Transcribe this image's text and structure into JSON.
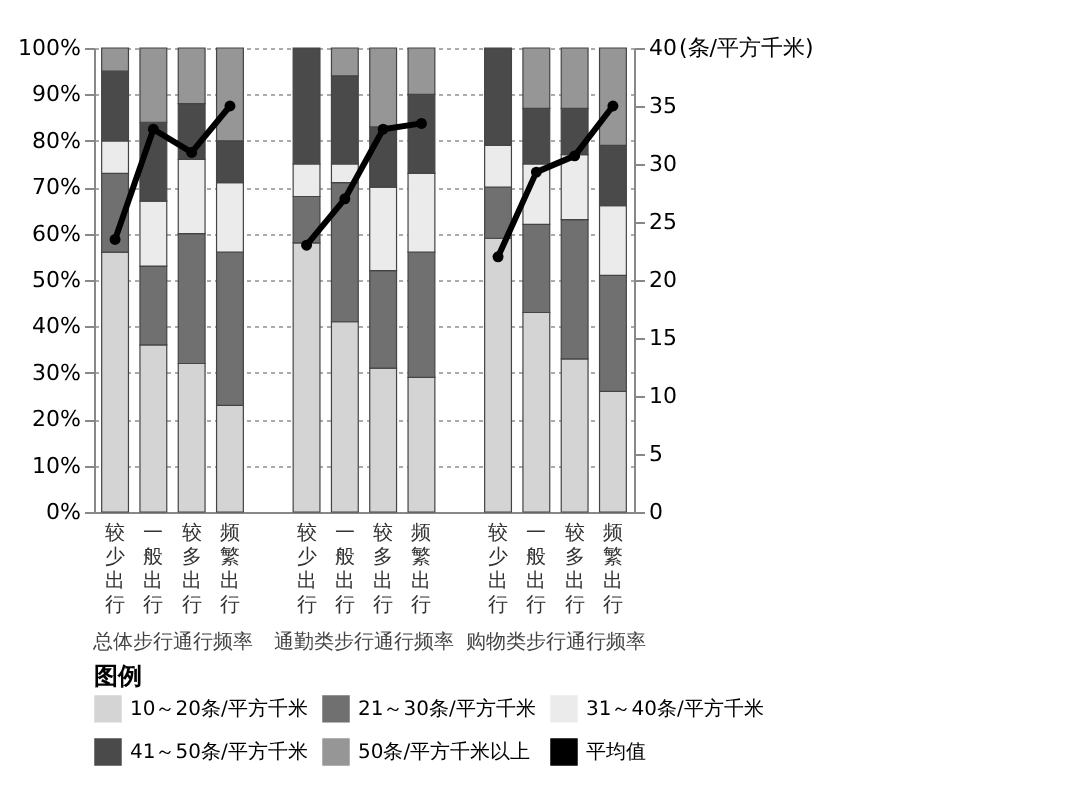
{
  "chart_data": {
    "type": "bar",
    "stacked": true,
    "categories": [
      "较少出行",
      "一般出行",
      "较多出行",
      "频繁出行",
      null,
      "较少出行",
      "一般出行",
      "较多出行",
      "频繁出行",
      null,
      "较少出行",
      "一般出行",
      "较多出行",
      "频繁出行"
    ],
    "series": [
      {
        "name": "10～20条/平方千米",
        "color": "#d4d4d4",
        "values": [
          56,
          36,
          32,
          23,
          null,
          58,
          41,
          31,
          29,
          null,
          59,
          43,
          33,
          26
        ]
      },
      {
        "name": "21～30条/平方千米",
        "color": "#707070",
        "values": [
          17,
          17,
          28,
          33,
          null,
          10,
          30,
          21,
          27,
          null,
          11,
          19,
          30,
          25
        ]
      },
      {
        "name": "31～40条/平方千米",
        "color": "#ebebeb",
        "values": [
          7,
          14,
          16,
          15,
          null,
          7,
          4,
          18,
          17,
          null,
          9,
          13,
          14,
          15
        ]
      },
      {
        "name": "41～50条/平方千米",
        "color": "#4a4a4a",
        "values": [
          15,
          17,
          12,
          9,
          null,
          25,
          19,
          13,
          17,
          null,
          21,
          12,
          10,
          13
        ]
      },
      {
        "name": "50条/平方千米以上",
        "color": "#969696",
        "values": [
          5,
          16,
          12,
          20,
          null,
          null,
          6,
          17,
          10,
          null,
          null,
          13,
          13,
          21
        ]
      },
      {
        "name": "平均值",
        "type": "line",
        "axis": "y2",
        "color": "#000000",
        "values": [
          23.5,
          33,
          31,
          35,
          null,
          23,
          27,
          33,
          33.5,
          null,
          22,
          29.3,
          30.7,
          35
        ]
      }
    ],
    "ylim": [
      0,
      100
    ],
    "yticks": [
      {
        "value": 0,
        "label": "0%"
      },
      {
        "value": 10,
        "label": "10%"
      },
      {
        "value": 20,
        "label": "20%"
      },
      {
        "value": 30,
        "label": "30%"
      },
      {
        "value": 40,
        "label": "40%"
      },
      {
        "value": 50,
        "label": "50%"
      },
      {
        "value": 60,
        "label": "60%"
      },
      {
        "value": 70,
        "label": "70%"
      },
      {
        "value": 80,
        "label": "80%"
      },
      {
        "value": 90,
        "label": "90%"
      },
      {
        "value": 100,
        "label": "100%"
      }
    ],
    "y2lim": [
      0,
      40
    ],
    "y2ticks": [
      0,
      5,
      10,
      15,
      20,
      25,
      30,
      35,
      40
    ],
    "y2label": "(条/平方千米)",
    "annotations": [
      "总体步行通行频率",
      "通勤类步行通行频率",
      "购物类步行通行频率"
    ],
    "legend_title": "图例",
    "legend": "bottom",
    "grid": "y",
    "marker": "circle",
    "line_style": "solid"
  }
}
